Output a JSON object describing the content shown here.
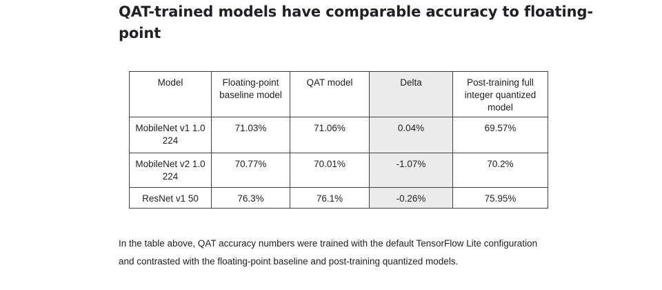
{
  "heading": "QAT-trained models have comparable accuracy to floating-point",
  "table": {
    "columns": [
      "Model",
      "Floating-point baseline model",
      "QAT model",
      "Delta",
      "Post-training full integer quantized model"
    ],
    "rows": [
      [
        "MobileNet v1 1.0 224",
        "71.03%",
        "71.06%",
        "0.04%",
        "69.57%"
      ],
      [
        "MobileNet v2 1.0 224",
        "70.77%",
        "70.01%",
        "-1.07%",
        "70.2%"
      ],
      [
        "ResNet v1 50",
        "76.3%",
        "76.1%",
        "-0.26%",
        "75.95%"
      ]
    ],
    "highlight_color": "#ebebeb"
  },
  "caption": "In the table above, QAT accuracy numbers were trained with the default TensorFlow Lite configuration and contrasted with the floating-point baseline and post-training quantized models."
}
